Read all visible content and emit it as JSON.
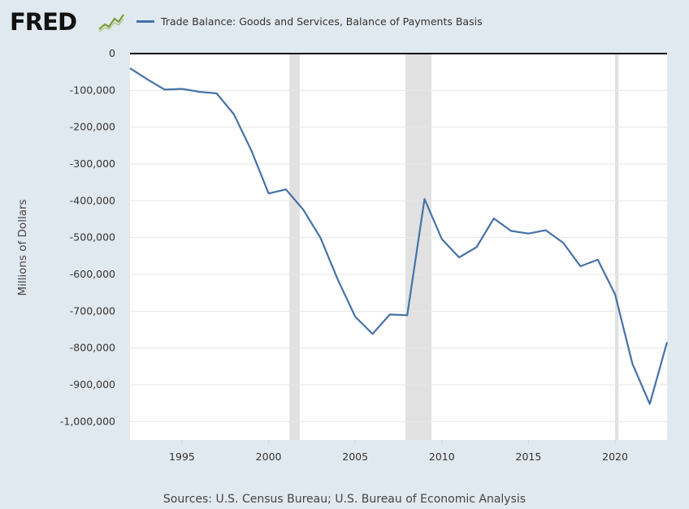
{
  "header": {
    "logo_text": "FRED",
    "logo_icon": "fred-chart-mark-icon"
  },
  "source": "Sources: U.S. Census Bureau; U.S. Bureau of Economic Analysis",
  "colors": {
    "series": "#4572a7",
    "background": "#e1e9f0",
    "plot": "#ffffff",
    "recession": "#e1e1e1",
    "zero_line": "#000000"
  },
  "chart_data": {
    "type": "line",
    "title": "",
    "xlabel": "",
    "ylabel": "Millions of Dollars",
    "xlim": [
      1992,
      2023
    ],
    "ylim": [
      -1050000,
      0
    ],
    "x_ticks": [
      1995,
      2000,
      2005,
      2010,
      2015,
      2020
    ],
    "y_ticks": [
      0,
      -100000,
      -200000,
      -300000,
      -400000,
      -500000,
      -600000,
      -700000,
      -800000,
      -900000,
      -1000000
    ],
    "y_tick_labels": [
      "0",
      "-100,000",
      "-200,000",
      "-300,000",
      "-400,000",
      "-500,000",
      "-600,000",
      "-700,000",
      "-800,000",
      "-900,000",
      "-1,000,000"
    ],
    "grid": true,
    "legend_position": "top",
    "recessions": [
      [
        2001.2,
        2001.8
      ],
      [
        2007.9,
        2009.4
      ],
      [
        2020.0,
        2020.2
      ]
    ],
    "series": [
      {
        "name": "Trade Balance: Goods and Services, Balance of Payments Basis",
        "x": [
          1992,
          1993,
          1994,
          1995,
          1996,
          1997,
          1998,
          1999,
          2000,
          2001,
          2002,
          2003,
          2004,
          2005,
          2006,
          2007,
          2008,
          2009,
          2010,
          2011,
          2012,
          2013,
          2014,
          2015,
          2016,
          2017,
          2018,
          2019,
          2020,
          2021,
          2022,
          2023
        ],
        "values": [
          -40000,
          -70000,
          -98000,
          -96000,
          -104000,
          -108000,
          -165000,
          -263000,
          -380000,
          -369000,
          -424000,
          -501000,
          -615000,
          -715000,
          -762000,
          -709000,
          -711000,
          -395000,
          -504000,
          -554000,
          -526000,
          -448000,
          -482000,
          -489000,
          -480000,
          -514000,
          -578000,
          -560000,
          -654000,
          -843000,
          -952000,
          -784000
        ]
      }
    ]
  }
}
